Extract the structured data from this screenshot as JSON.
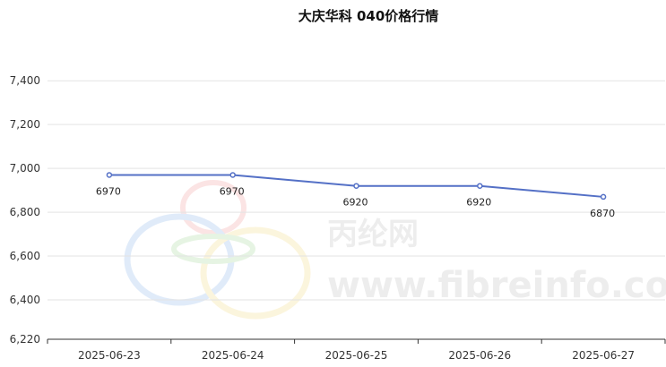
{
  "chart_data": {
    "type": "line",
    "title": "大庆华科 040价格行情",
    "categories": [
      "2025-06-23",
      "2025-06-24",
      "2025-06-25",
      "2025-06-26",
      "2025-06-27"
    ],
    "series": [
      {
        "values": [
          6970,
          6970,
          6920,
          6920,
          6870
        ],
        "color": "#5470c6"
      }
    ],
    "data_labels": [
      "6970",
      "6970",
      "6920",
      "6920",
      "6870"
    ],
    "ylim": [
      6220,
      7450
    ],
    "yticks": [
      7400,
      7200,
      7000,
      6800,
      6600,
      6400,
      6220
    ],
    "ytick_labels": [
      "7,400",
      "7,200",
      "7,000",
      "6,800",
      "6,600",
      "6,400",
      "6,220"
    ],
    "xlabel": "",
    "ylabel": "",
    "grid": true,
    "legend": "none"
  },
  "watermark": {
    "name": "丙纶网",
    "url": "www.fibreinfo.com"
  }
}
